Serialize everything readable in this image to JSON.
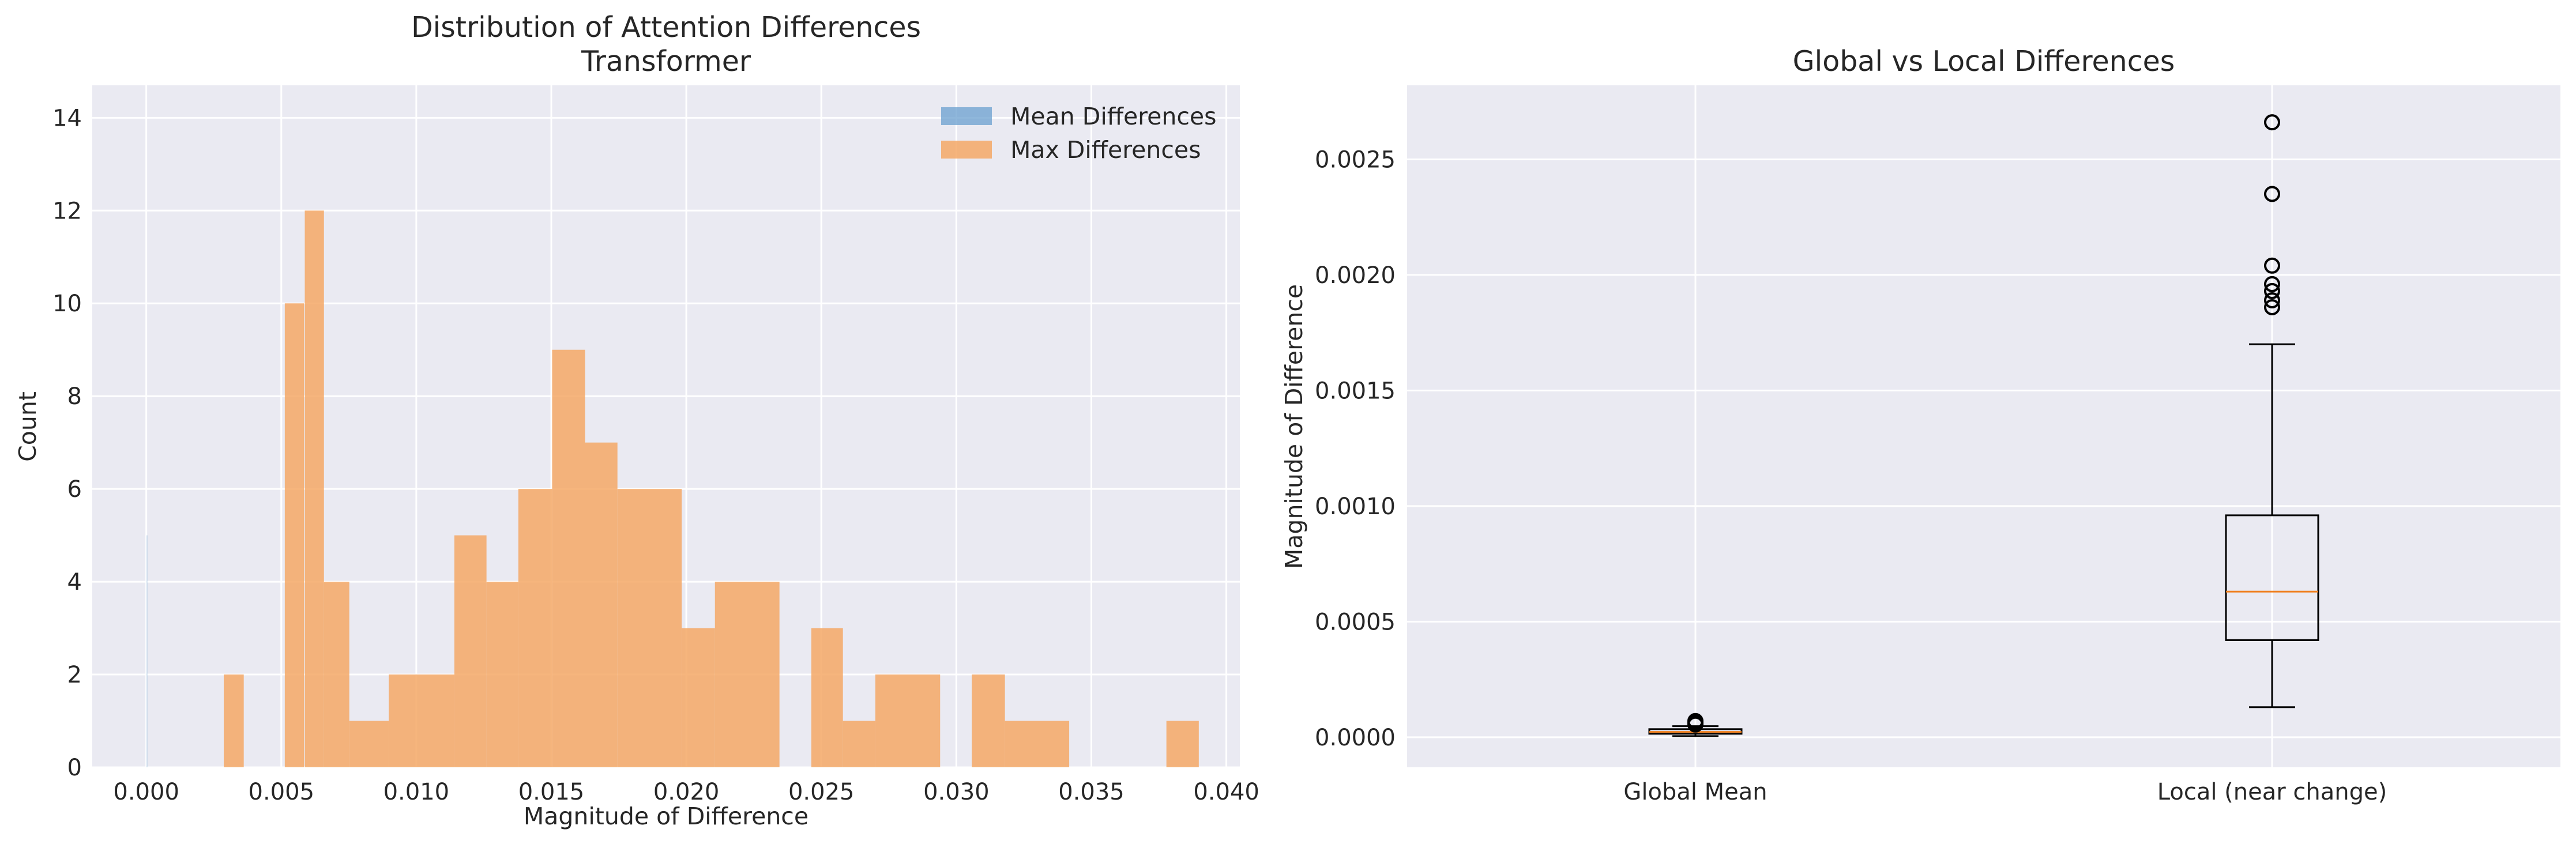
{
  "chart_data": [
    {
      "type": "histogram",
      "title": "Distribution of Attention Differences\nTransformer",
      "title_lines": [
        "Distribution of Attention Differences",
        "Transformer"
      ],
      "xlabel": "Magnitude of Difference",
      "ylabel": "Count",
      "xlim": [
        -0.002,
        0.0405
      ],
      "ylim": [
        0,
        14.7
      ],
      "xticks": [
        0.0,
        0.005,
        0.01,
        0.015,
        0.02,
        0.025,
        0.03,
        0.035,
        0.04
      ],
      "xtick_labels": [
        "0.000",
        "0.005",
        "0.010",
        "0.015",
        "0.020",
        "0.025",
        "0.030",
        "0.035",
        "0.040"
      ],
      "yticks": [
        0,
        2,
        4,
        6,
        8,
        10,
        12,
        14
      ],
      "ytick_labels": [
        "0",
        "2",
        "4",
        "6",
        "8",
        "10",
        "12",
        "14"
      ],
      "grid": true,
      "legend_position": "top-right",
      "series": [
        {
          "name": "Mean Differences",
          "color": "#6a9fcf",
          "bins": [
            {
              "x0": 0.0,
              "x1": 5e-05,
              "count": 5
            }
          ]
        },
        {
          "name": "Max Differences",
          "color": "#f5a866",
          "bins": [
            {
              "x0": 0.00287,
              "x1": 0.00361,
              "count": 2
            },
            {
              "x0": 0.00513,
              "x1": 0.00584,
              "count": 10
            },
            {
              "x0": 0.00587,
              "x1": 0.00658,
              "count": 12
            },
            {
              "x0": 0.00658,
              "x1": 0.00752,
              "count": 4
            },
            {
              "x0": 0.00752,
              "x1": 0.00898,
              "count": 1
            },
            {
              "x0": 0.00898,
              "x1": 0.01141,
              "count": 2
            },
            {
              "x0": 0.01141,
              "x1": 0.0126,
              "count": 5
            },
            {
              "x0": 0.0126,
              "x1": 0.01378,
              "count": 4
            },
            {
              "x0": 0.01378,
              "x1": 0.01503,
              "count": 6
            },
            {
              "x0": 0.01503,
              "x1": 0.01625,
              "count": 9
            },
            {
              "x0": 0.01625,
              "x1": 0.01745,
              "count": 7
            },
            {
              "x0": 0.01745,
              "x1": 0.01983,
              "count": 6
            },
            {
              "x0": 0.01983,
              "x1": 0.02106,
              "count": 3
            },
            {
              "x0": 0.02106,
              "x1": 0.02345,
              "count": 4
            },
            {
              "x0": 0.02463,
              "x1": 0.0258,
              "count": 3
            },
            {
              "x0": 0.0258,
              "x1": 0.027,
              "count": 1
            },
            {
              "x0": 0.027,
              "x1": 0.0294,
              "count": 2
            },
            {
              "x0": 0.03057,
              "x1": 0.0318,
              "count": 2
            },
            {
              "x0": 0.0318,
              "x1": 0.03418,
              "count": 1
            },
            {
              "x0": 0.03778,
              "x1": 0.03898,
              "count": 1
            }
          ]
        }
      ]
    },
    {
      "type": "box",
      "title": "Global vs Local Differences",
      "xlabel": "",
      "ylabel": "Magnitude of Difference",
      "ylim": [
        -0.00013,
        0.00282
      ],
      "yticks": [
        0.0,
        0.0005,
        0.001,
        0.0015,
        0.002,
        0.0025
      ],
      "ytick_labels": [
        "0.0000",
        "0.0005",
        "0.0010",
        "0.0015",
        "0.0020",
        "0.0025"
      ],
      "categories": [
        "Global Mean",
        "Local (near change)"
      ],
      "grid": true,
      "boxes": [
        {
          "label": "Global Mean",
          "whisker_low": 5e-06,
          "q1": 1.5e-05,
          "median": 2.3e-05,
          "q3": 3.5e-05,
          "whisker_high": 4.8e-05,
          "outliers": [
            5.5e-05,
            6.2e-05,
            7e-05
          ],
          "median_color": "#f08020"
        },
        {
          "label": "Local (near change)",
          "whisker_low": 0.00013,
          "q1": 0.00042,
          "median": 0.00063,
          "q3": 0.00096,
          "whisker_high": 0.0017,
          "outliers": [
            0.00186,
            0.00189,
            0.00193,
            0.00196,
            0.00204,
            0.00235,
            0.00266
          ],
          "median_color": "#f08020"
        }
      ]
    }
  ]
}
